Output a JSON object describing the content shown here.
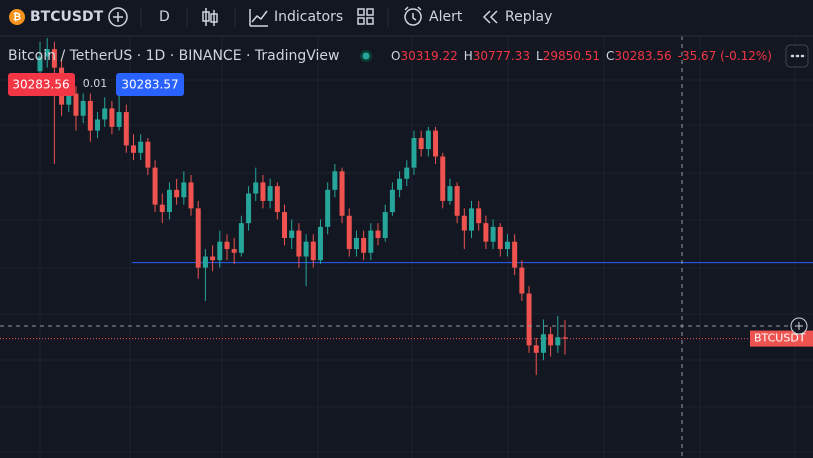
{
  "toolbar": {
    "symbol": "BTCUSDT",
    "interval": "D",
    "indicators": "Indicators",
    "alert": "Alert",
    "replay": "Replay"
  },
  "legend": {
    "title": "Bitcoin / TetherUS · 1D · BINANCE · TradingView",
    "ohlc": [
      {
        "label": "O",
        "value": "30319.22"
      },
      {
        "label": "H",
        "value": "30777.33"
      },
      {
        "label": "L",
        "value": "29850.51"
      },
      {
        "label": "C",
        "value": "30283.56"
      }
    ],
    "change": "-35.67 (-0.12%)",
    "bid": "30283.56",
    "spread": "0.01",
    "ask": "30283.57"
  },
  "chart_data": {
    "type": "candlestick",
    "up_color": "#26a69a",
    "down_color": "#ef5350",
    "line_color": "#2962ff",
    "last_label": "BTCUSDT",
    "horizontal_line": 32336,
    "candles": [
      [
        37500,
        38300,
        37200,
        37900
      ],
      [
        37900,
        38400,
        37600,
        38100
      ],
      [
        38100,
        38300,
        35000,
        37600
      ],
      [
        37600,
        37800,
        36300,
        36600
      ],
      [
        36600,
        37200,
        36400,
        36900
      ],
      [
        36900,
        37100,
        35900,
        36300
      ],
      [
        36300,
        36900,
        36100,
        36700
      ],
      [
        36700,
        36900,
        35600,
        35900
      ],
      [
        35900,
        36400,
        35700,
        36200
      ],
      [
        36200,
        36800,
        36000,
        36500
      ],
      [
        36500,
        36700,
        35800,
        36000
      ],
      [
        36000,
        36900,
        35900,
        36400
      ],
      [
        36400,
        36600,
        35300,
        35500
      ],
      [
        35500,
        35800,
        35100,
        35300
      ],
      [
        35300,
        35800,
        35100,
        35600
      ],
      [
        35600,
        35700,
        34700,
        34900
      ],
      [
        34900,
        35100,
        33700,
        33900
      ],
      [
        33900,
        34200,
        33400,
        33700
      ],
      [
        33700,
        34500,
        33500,
        34300
      ],
      [
        34300,
        34600,
        33900,
        34100
      ],
      [
        34100,
        34800,
        33900,
        34500
      ],
      [
        34500,
        34700,
        33600,
        33800
      ],
      [
        33800,
        34000,
        31900,
        32200
      ],
      [
        32200,
        32700,
        31300,
        32500
      ],
      [
        32500,
        32800,
        32100,
        32400
      ],
      [
        32400,
        33200,
        32200,
        32900
      ],
      [
        32900,
        33100,
        32400,
        32700
      ],
      [
        32700,
        33000,
        32300,
        32600
      ],
      [
        32600,
        33600,
        32500,
        33400
      ],
      [
        33400,
        34400,
        33200,
        34200
      ],
      [
        34200,
        34900,
        34000,
        34500
      ],
      [
        34500,
        34700,
        33800,
        34000
      ],
      [
        34000,
        34600,
        33800,
        34400
      ],
      [
        34400,
        34500,
        33500,
        33700
      ],
      [
        33700,
        33900,
        32800,
        33000
      ],
      [
        33000,
        33500,
        32700,
        33200
      ],
      [
        33200,
        33400,
        32200,
        32500
      ],
      [
        32500,
        33100,
        31700,
        32900
      ],
      [
        32900,
        33100,
        32200,
        32400
      ],
      [
        32400,
        33500,
        32300,
        33300
      ],
      [
        33300,
        34500,
        33100,
        34300
      ],
      [
        34300,
        35000,
        34100,
        34800
      ],
      [
        34800,
        34900,
        33400,
        33600
      ],
      [
        33600,
        33800,
        32500,
        32700
      ],
      [
        32700,
        33200,
        32500,
        33000
      ],
      [
        33000,
        33200,
        32400,
        32600
      ],
      [
        32600,
        33400,
        32400,
        33200
      ],
      [
        33200,
        33400,
        32800,
        33000
      ],
      [
        33000,
        33900,
        32900,
        33700
      ],
      [
        33700,
        34500,
        33600,
        34300
      ],
      [
        34300,
        34800,
        34100,
        34600
      ],
      [
        34600,
        35100,
        34400,
        34900
      ],
      [
        34900,
        35900,
        34700,
        35700
      ],
      [
        35700,
        35900,
        35200,
        35400
      ],
      [
        35400,
        36000,
        35200,
        35900
      ],
      [
        35900,
        36000,
        35000,
        35200
      ],
      [
        35200,
        35300,
        33800,
        34000
      ],
      [
        34000,
        34600,
        33900,
        34400
      ],
      [
        34400,
        34500,
        33400,
        33600
      ],
      [
        33600,
        33800,
        32700,
        33200
      ],
      [
        33200,
        34000,
        33000,
        33800
      ],
      [
        33800,
        34000,
        33200,
        33400
      ],
      [
        33400,
        33600,
        32700,
        32900
      ],
      [
        32900,
        33500,
        32700,
        33300
      ],
      [
        33300,
        33400,
        32500,
        32700
      ],
      [
        32700,
        33100,
        32500,
        32900
      ],
      [
        32900,
        33100,
        32000,
        32200
      ],
      [
        32200,
        32400,
        31300,
        31500
      ],
      [
        31500,
        31700,
        29900,
        30100
      ],
      [
        30100,
        30300,
        29300,
        29900
      ],
      [
        29900,
        30800,
        29700,
        30400
      ],
      [
        30400,
        30600,
        29800,
        30100
      ],
      [
        30100,
        30900,
        29900,
        30319
      ],
      [
        30319.22,
        30777.33,
        29850.51,
        30283.56
      ]
    ]
  }
}
